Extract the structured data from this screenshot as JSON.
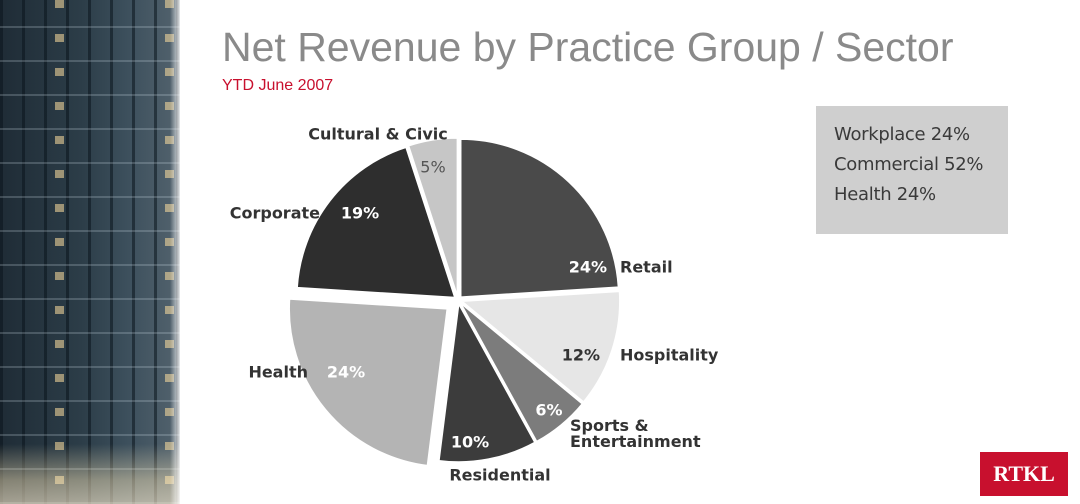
{
  "slide": {
    "title": "Net Revenue by Practice Group / Sector",
    "subtitle": "YTD June 2007"
  },
  "summary": {
    "lines": [
      "Workplace 24%",
      "Commercial 52%",
      "Health 24%"
    ]
  },
  "logo": {
    "text": "RTKL"
  },
  "colors": {
    "accent": "#c8102e",
    "title_gray": "#8a8a8a",
    "summary_bg": "#cfcfcf"
  },
  "chart_data": {
    "type": "pie",
    "title": "Net Revenue by Practice Group / Sector",
    "subtitle": "YTD June 2007",
    "slices": [
      {
        "label": "Retail",
        "value": 24,
        "value_label": "24%",
        "color": "#4a4a4a"
      },
      {
        "label": "Hospitality",
        "value": 12,
        "value_label": "12%",
        "color": "#e6e6e6"
      },
      {
        "label": "Sports & Entertainment",
        "value": 6,
        "value_label": "6%",
        "color": "#7c7c7c"
      },
      {
        "label": "Residential",
        "value": 10,
        "value_label": "10%",
        "color": "#3c3c3c"
      },
      {
        "label": "Health",
        "value": 24,
        "value_label": "24%",
        "color": "#b4b4b4"
      },
      {
        "label": "Corporate",
        "value": 19,
        "value_label": "19%",
        "color": "#2e2e2e"
      },
      {
        "label": "Cultural & Civic",
        "value": 5,
        "value_label": "5%",
        "color": "#c6c6c6"
      }
    ]
  }
}
